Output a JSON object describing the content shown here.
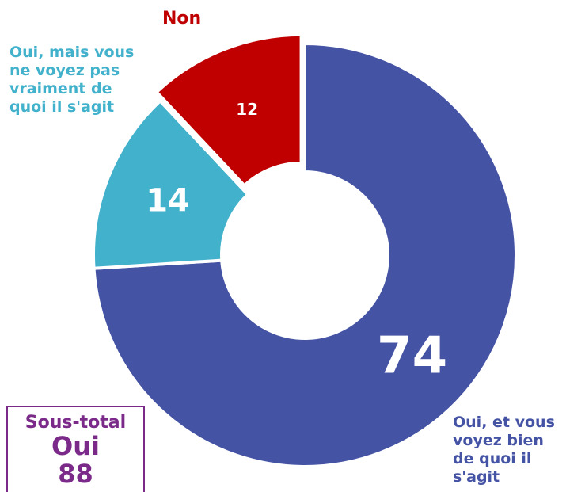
{
  "chart_data": {
    "type": "donut",
    "categories": [
      "Oui, et vous voyez bien de quoi il s'agit",
      "Oui, mais vous ne voyez pas vraiment de quoi il s'agit",
      "Non"
    ],
    "values": [
      74,
      14,
      12
    ],
    "colors": [
      "#4553a5",
      "#41b1cc",
      "#c00000"
    ],
    "subtotal": {
      "title": "Sous-total",
      "label": "Oui",
      "value": 88
    }
  }
}
